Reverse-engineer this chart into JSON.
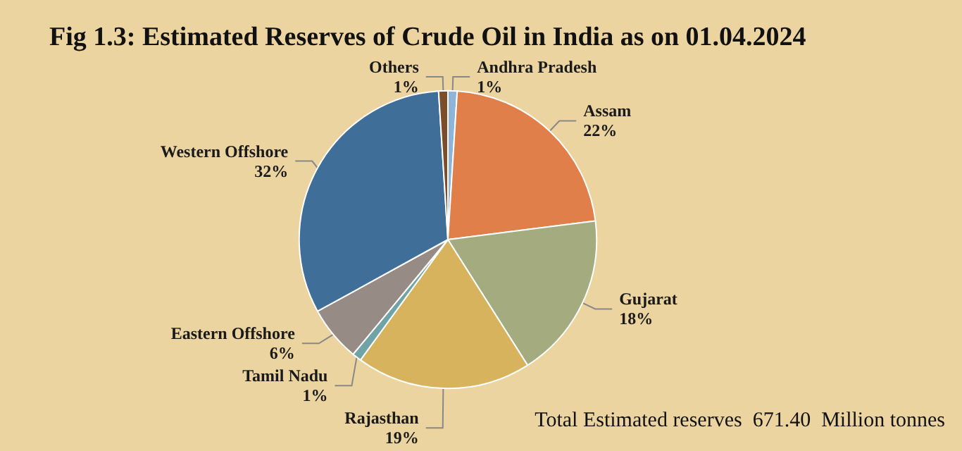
{
  "chart_data": {
    "type": "pie",
    "title": "Fig 1.3: Estimated Reserves of Crude Oil in India as on 01.04.2024",
    "categories": [
      "Andhra Pradesh",
      "Assam",
      "Gujarat",
      "Rajasthan",
      "Tamil Nadu",
      "Eastern Offshore",
      "Western Offshore",
      "Others"
    ],
    "values": [
      1,
      22,
      18,
      19,
      1,
      6,
      32,
      1
    ],
    "colors": [
      "#8fb4d9",
      "#e07f4a",
      "#a3ab7f",
      "#d8b35e",
      "#6fa3a5",
      "#978b85",
      "#3f6f99",
      "#7a4e2a"
    ],
    "value_labels": [
      "1%",
      "22%",
      "18%",
      "19%",
      "1%",
      "6%",
      "32%",
      "1%"
    ],
    "legend": false,
    "annotations": [
      "Total Estimated reserves  671.40  Million tonnes"
    ]
  }
}
